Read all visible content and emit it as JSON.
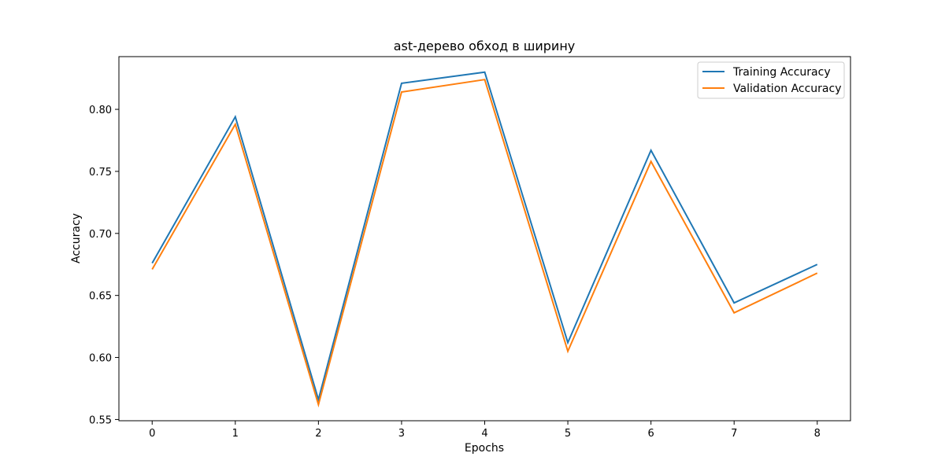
{
  "chart_data": {
    "type": "line",
    "title": "ast-дерево обход в ширину",
    "xlabel": "Epochs",
    "ylabel": "Accuracy",
    "x": [
      0,
      1,
      2,
      3,
      4,
      5,
      6,
      7,
      8
    ],
    "xlim": [
      -0.4,
      8.4
    ],
    "ylim": [
      0.549,
      0.8425
    ],
    "xticks": [
      0,
      1,
      2,
      3,
      4,
      5,
      6,
      7,
      8
    ],
    "xtick_labels": [
      "0",
      "1",
      "2",
      "3",
      "4",
      "5",
      "6",
      "7",
      "8"
    ],
    "yticks": [
      0.55,
      0.6,
      0.65,
      0.7,
      0.75,
      0.8
    ],
    "ytick_labels": [
      "0.55",
      "0.60",
      "0.65",
      "0.70",
      "0.75",
      "0.80"
    ],
    "grid": false,
    "legend_position": "top-right",
    "series": [
      {
        "name": "Training Accuracy",
        "color": "#1f77b4",
        "values": [
          0.676,
          0.794,
          0.566,
          0.821,
          0.83,
          0.612,
          0.767,
          0.644,
          0.675
        ]
      },
      {
        "name": "Validation Accuracy",
        "color": "#ff7f0e",
        "values": [
          0.671,
          0.788,
          0.562,
          0.814,
          0.824,
          0.605,
          0.758,
          0.636,
          0.668
        ]
      }
    ]
  }
}
